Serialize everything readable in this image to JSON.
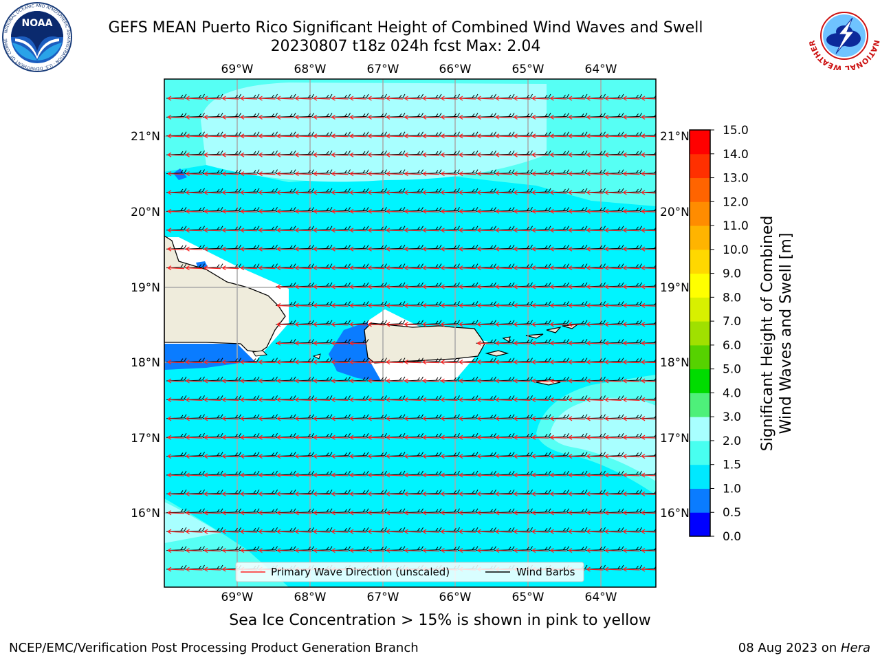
{
  "header": {
    "title_line1": "GEFS MEAN Puerto Rico Significant Height of Combined Wind Waves and Swell",
    "title_line2": "20230807 t18z 024h fcst   Max: 2.04"
  },
  "logos": {
    "noaa": {
      "icon": "noaa-logo",
      "text": "NOAA",
      "ring_text": "NATIONAL OCEANIC AND ATMOSPHERIC ADMINISTRATION · U.S. DEPARTMENT OF COMMERCE"
    },
    "nws": {
      "icon": "nws-logo",
      "ring_text": "NATIONAL WEATHER SERVICE"
    }
  },
  "map": {
    "lon_labels": [
      "69°W",
      "68°W",
      "67°W",
      "66°W",
      "65°W",
      "64°W"
    ],
    "lat_labels": [
      "21°N",
      "20°N",
      "19°N",
      "18°N",
      "17°N",
      "16°N"
    ],
    "legend": {
      "primary_wave": "Primary Wave Direction (unscaled)",
      "wind_barbs": "Wind Barbs"
    },
    "colors": {
      "land": "#efecdc",
      "wave_arrow": "#ff2020",
      "barb": "#000000"
    }
  },
  "colorbar": {
    "label_line1": "Significant Height of Combined",
    "label_line2": "Wind Waves and Swell [m]",
    "ticks": [
      "0.0",
      "0.5",
      "1.0",
      "1.5",
      "2.0",
      "3.0",
      "4.0",
      "5.0",
      "6.0",
      "7.0",
      "8.0",
      "9.0",
      "10.0",
      "11.0",
      "12.0",
      "13.0",
      "14.0",
      "15.0"
    ],
    "colors": [
      "#0000ff",
      "#0a7cff",
      "#00e8ff",
      "#48fff0",
      "#a8ffff",
      "#4ef07a",
      "#00dc00",
      "#56d200",
      "#a0e000",
      "#d8f000",
      "#ffff00",
      "#ffd800",
      "#ffb400",
      "#ff8c00",
      "#ff6400",
      "#ff3000",
      "#ff0000"
    ]
  },
  "subtitle": "Sea Ice Concentration > 15% is shown in pink to yellow",
  "footer": {
    "left": "NCEP/EMC/Verification Post Processing Product Generation Branch",
    "right_date": "08 Aug 2023 on ",
    "right_host": "Hera"
  }
}
